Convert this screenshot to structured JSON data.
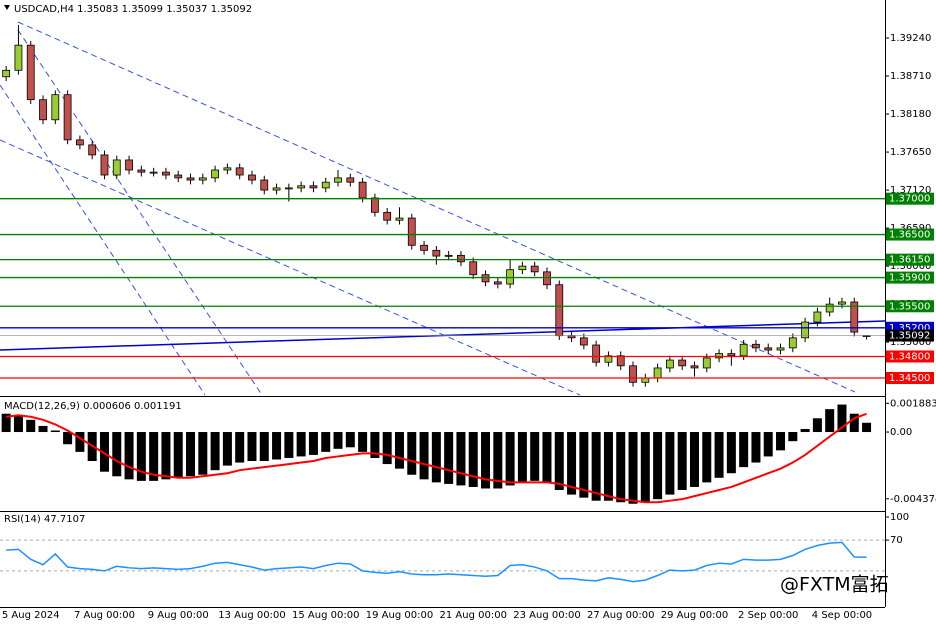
{
  "chart_data": [
    {
      "type": "candlestick",
      "title": "USDCAD,H4 1.35083 1.35099 1.35037 1.35092",
      "categories": [
        null,
        null,
        "5 Aug 2024",
        null,
        null,
        null,
        null,
        null,
        "7 Aug 00:00",
        null,
        null,
        null,
        null,
        null,
        "9 Aug 00:00",
        null,
        null,
        null,
        null,
        null,
        "13 Aug 00:00",
        null,
        null,
        null,
        null,
        null,
        "15 Aug 00:00",
        null,
        null,
        null,
        null,
        null,
        "19 Aug 00:00",
        null,
        null,
        null,
        null,
        null,
        "21 Aug 00:00",
        null,
        null,
        null,
        null,
        null,
        "23 Aug 00:00",
        null,
        null,
        null,
        null,
        null,
        "27 Aug 00:00",
        null,
        null,
        null,
        null,
        null,
        "29 Aug 00:00",
        null,
        null,
        null,
        null,
        null,
        "2 Sep 00:00",
        null,
        null,
        null,
        null,
        null,
        "4 Sep 00:00",
        null,
        null
      ],
      "open": [
        1.387,
        1.3879,
        1.3914,
        1.3838,
        1.381,
        1.3845,
        1.3782,
        1.3775,
        1.3761,
        1.3733,
        1.3754,
        1.374,
        1.3737,
        1.3737,
        1.3733,
        1.3729,
        1.3726,
        1.3729,
        1.374,
        1.3743,
        1.3733,
        1.3726,
        1.3712,
        1.3715,
        1.3715,
        1.3718,
        1.3715,
        1.3723,
        1.3729,
        1.3723,
        1.3701,
        1.3681,
        1.367,
        1.3673,
        1.3635,
        1.3628,
        1.362,
        1.3621,
        1.3612,
        1.3594,
        1.3584,
        1.3581,
        1.3601,
        1.3606,
        1.3598,
        1.358,
        1.3509,
        1.3506,
        1.3496,
        1.3472,
        1.3481,
        1.3467,
        1.3444,
        1.345,
        1.3464,
        1.3475,
        1.3467,
        1.3464,
        1.3478,
        1.3484,
        1.3481,
        1.3497,
        1.3492,
        1.3489,
        1.3492,
        1.3506,
        1.3528,
        1.3542,
        1.3553,
        1.3556,
        1.35083
      ],
      "high": [
        1.3885,
        1.3942,
        1.392,
        1.3844,
        1.3851,
        1.3851,
        1.3788,
        1.3781,
        1.3767,
        1.376,
        1.376,
        1.3746,
        1.3743,
        1.3743,
        1.3739,
        1.3735,
        1.3735,
        1.3746,
        1.3749,
        1.3749,
        1.3739,
        1.3732,
        1.3721,
        1.3721,
        1.3724,
        1.3724,
        1.3729,
        1.374,
        1.3735,
        1.3729,
        1.3707,
        1.3687,
        1.3688,
        1.3679,
        1.3641,
        1.3634,
        1.3627,
        1.3627,
        1.3618,
        1.36,
        1.359,
        1.3615,
        1.3612,
        1.3612,
        1.3604,
        1.3586,
        1.3515,
        1.3512,
        1.3502,
        1.3487,
        1.3487,
        1.3473,
        1.3456,
        1.347,
        1.3481,
        1.3481,
        1.3473,
        1.3484,
        1.349,
        1.349,
        1.3503,
        1.3503,
        1.3498,
        1.3498,
        1.3512,
        1.3534,
        1.3548,
        1.3562,
        1.3562,
        1.3562,
        1.35099
      ],
      "low": [
        1.3864,
        1.3873,
        1.3832,
        1.3804,
        1.3804,
        1.3776,
        1.3769,
        1.3755,
        1.3727,
        1.3727,
        1.3734,
        1.3731,
        1.3731,
        1.3727,
        1.3723,
        1.372,
        1.372,
        1.3723,
        1.3734,
        1.3727,
        1.372,
        1.3706,
        1.3706,
        1.3696,
        1.3709,
        1.3709,
        1.3709,
        1.3717,
        1.3717,
        1.3695,
        1.3675,
        1.3664,
        1.3664,
        1.3629,
        1.3622,
        1.3608,
        1.3614,
        1.3606,
        1.3588,
        1.3578,
        1.3575,
        1.3575,
        1.3595,
        1.3592,
        1.3574,
        1.3503,
        1.35,
        1.349,
        1.3466,
        1.3466,
        1.3461,
        1.3438,
        1.3438,
        1.3444,
        1.3458,
        1.3461,
        1.3452,
        1.3458,
        1.3472,
        1.3467,
        1.3475,
        1.3486,
        1.3483,
        1.3483,
        1.3486,
        1.35,
        1.3522,
        1.3536,
        1.3547,
        1.3508,
        1.35037
      ],
      "close": [
        1.3879,
        1.3914,
        1.3838,
        1.381,
        1.3845,
        1.3782,
        1.3775,
        1.3761,
        1.3733,
        1.3754,
        1.374,
        1.3737,
        1.3737,
        1.3733,
        1.3729,
        1.3726,
        1.3729,
        1.374,
        1.3743,
        1.3733,
        1.3726,
        1.3712,
        1.3715,
        1.3715,
        1.3718,
        1.3715,
        1.3723,
        1.3729,
        1.3723,
        1.3701,
        1.3681,
        1.367,
        1.3673,
        1.3635,
        1.3628,
        1.362,
        1.3621,
        1.3612,
        1.3594,
        1.3584,
        1.3581,
        1.3601,
        1.3606,
        1.3598,
        1.358,
        1.3509,
        1.3506,
        1.3496,
        1.3472,
        1.3481,
        1.3467,
        1.3444,
        1.345,
        1.3464,
        1.3475,
        1.3467,
        1.3464,
        1.3478,
        1.3484,
        1.3481,
        1.3497,
        1.3492,
        1.3489,
        1.3492,
        1.3506,
        1.3528,
        1.3542,
        1.3553,
        1.3556,
        1.3514,
        1.35092
      ],
      "up_color": "#9acd32",
      "down_color": "#c0504d",
      "ylim": [
        1.34263,
        1.3977
      ],
      "yticks": [
        {
          "value": 1.3924,
          "label": "1.39240"
        },
        {
          "value": 1.3871,
          "label": "1.38710"
        },
        {
          "value": 1.3818,
          "label": "1.38180"
        },
        {
          "value": 1.3765,
          "label": "1.37650"
        },
        {
          "value": 1.3712,
          "label": "1.37120"
        },
        {
          "value": 1.3659,
          "label": "1.36590"
        },
        {
          "value": 1.3606,
          "label": "1.36060"
        },
        {
          "value": 1.3553,
          "label": "1.35530"
        },
        {
          "value": 1.35,
          "label": "1.35000"
        }
      ],
      "levels": [
        {
          "value": 1.37,
          "label": "1.37000",
          "color": "#008000"
        },
        {
          "value": 1.365,
          "label": "1.36500",
          "color": "#008000"
        },
        {
          "value": 1.3615,
          "label": "1.36150",
          "color": "#008000"
        },
        {
          "value": 1.359,
          "label": "1.35900",
          "color": "#008000"
        },
        {
          "value": 1.355,
          "label": "1.35500",
          "color": "#008000"
        },
        {
          "value": 1.352,
          "label": "1.35200",
          "color": "#0000cd"
        },
        {
          "value": 1.348,
          "label": "1.34800",
          "color": "#ff0000"
        },
        {
          "value": 1.345,
          "label": "1.34500",
          "color": "#ff0000"
        }
      ],
      "price_tag": 1.35092
    },
    {
      "type": "macd",
      "title": "MACD(12,26,9) 0.000606 0.001191",
      "histogram": {
        "color": "#000000",
        "values": [
          0.0012,
          0.0011,
          0.0008,
          0.0004,
          0.0001,
          -0.0008,
          -0.0013,
          -0.0019,
          -0.0026,
          -0.0029,
          -0.0031,
          -0.0032,
          -0.0032,
          -0.0031,
          -0.003,
          -0.0029,
          -0.0028,
          -0.0025,
          -0.0022,
          -0.002,
          -0.0019,
          -0.0019,
          -0.0018,
          -0.0017,
          -0.0016,
          -0.0015,
          -0.0013,
          -0.0011,
          -0.001,
          -0.0013,
          -0.0017,
          -0.0021,
          -0.0024,
          -0.0028,
          -0.0031,
          -0.0033,
          -0.0034,
          -0.0035,
          -0.0036,
          -0.0037,
          -0.0037,
          -0.0035,
          -0.0033,
          -0.0032,
          -0.0033,
          -0.0038,
          -0.0041,
          -0.0043,
          -0.0045,
          -0.0045,
          -0.0046,
          -0.0047,
          -0.0046,
          -0.0044,
          -0.0041,
          -0.0038,
          -0.0036,
          -0.0033,
          -0.003,
          -0.0027,
          -0.0023,
          -0.002,
          -0.0016,
          -0.0012,
          -0.0006,
          0.0002,
          0.0009,
          0.0015,
          0.0018,
          0.0012,
          0.000606
        ]
      },
      "signal": {
        "color": "#ff0000",
        "values": [
          0.001,
          0.0011,
          0.001,
          0.0008,
          0.0005,
          0.0001,
          -0.0004,
          -0.0009,
          -0.0014,
          -0.0019,
          -0.0023,
          -0.0026,
          -0.0028,
          -0.0029,
          -0.003,
          -0.003,
          -0.0029,
          -0.0028,
          -0.0027,
          -0.0025,
          -0.0024,
          -0.0023,
          -0.0022,
          -0.0021,
          -0.002,
          -0.0019,
          -0.0017,
          -0.0016,
          -0.0015,
          -0.0014,
          -0.0014,
          -0.0015,
          -0.0017,
          -0.0019,
          -0.0021,
          -0.0023,
          -0.0025,
          -0.0027,
          -0.0029,
          -0.0031,
          -0.0032,
          -0.0033,
          -0.0033,
          -0.0033,
          -0.0033,
          -0.0034,
          -0.0036,
          -0.0038,
          -0.004,
          -0.0042,
          -0.0044,
          -0.0045,
          -0.0046,
          -0.0046,
          -0.0045,
          -0.0044,
          -0.0042,
          -0.004,
          -0.0038,
          -0.0036,
          -0.0033,
          -0.003,
          -0.0027,
          -0.0024,
          -0.002,
          -0.0015,
          -0.0009,
          -0.0003,
          0.0003,
          0.0009,
          0.001191
        ]
      },
      "ylim": [
        -0.00511,
        0.00223
      ],
      "yticks": [
        0.001883,
        {
          "value": 0,
          "label": "0.00"
        },
        -0.004374
      ]
    },
    {
      "type": "line",
      "title": "RSI(14) 47.7107",
      "color": "#1e90ff",
      "values": [
        57,
        58,
        45,
        38,
        52,
        35,
        33,
        32,
        30,
        36,
        34,
        33,
        34,
        33,
        32,
        33,
        36,
        40,
        41,
        38,
        35,
        31,
        33,
        34,
        35,
        33,
        37,
        40,
        39,
        30,
        28,
        27,
        29,
        26,
        25,
        25,
        26,
        25,
        24,
        23,
        24,
        37,
        38,
        35,
        30,
        20,
        20,
        18,
        17,
        21,
        19,
        16,
        18,
        24,
        31,
        30,
        31,
        37,
        40,
        39,
        45,
        44,
        44,
        45,
        50,
        58,
        63,
        66,
        67,
        48,
        47.7107
      ],
      "ylim": [
        -15.6,
        106.5
      ],
      "yticks": [
        100,
        70
      ],
      "levels": [
        70,
        30
      ]
    }
  ],
  "watermark": "@FXTM富拓"
}
